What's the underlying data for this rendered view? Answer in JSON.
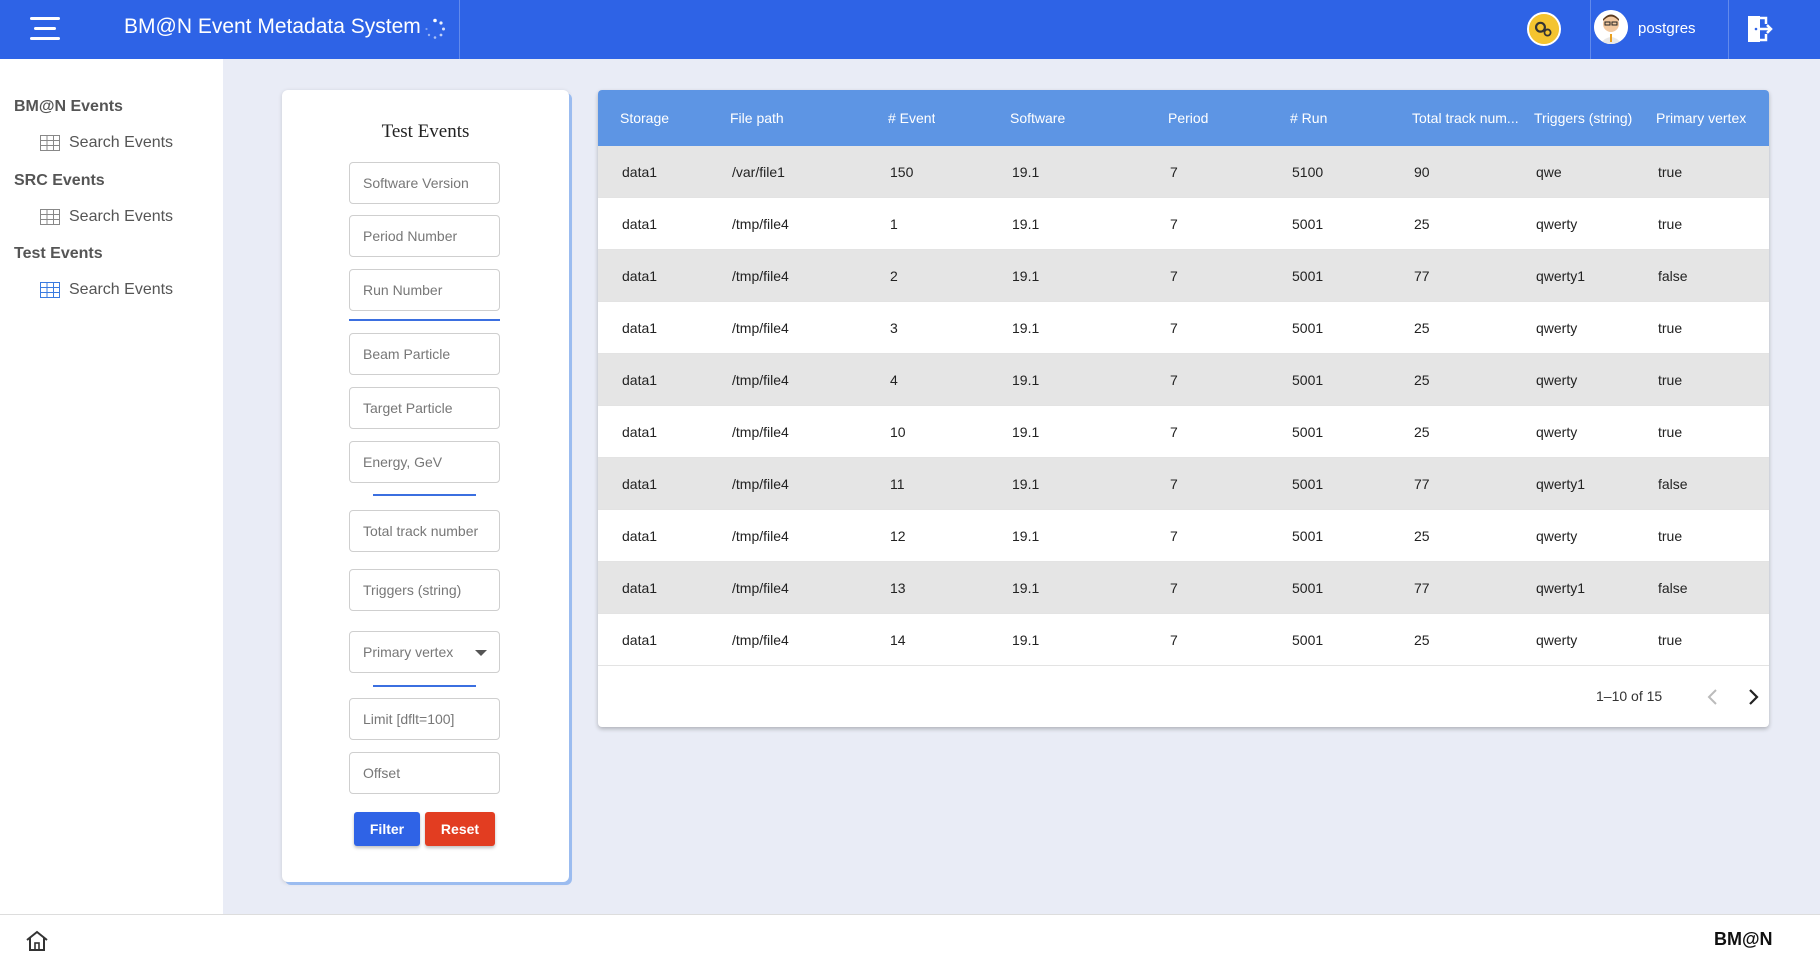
{
  "header": {
    "title": "BM@N Event Metadata System",
    "username": "postgres",
    "menu_icon": "menu-icon",
    "db_icon": "database-settings-icon",
    "logout_icon": "logout-icon"
  },
  "sidebar": {
    "groups": [
      {
        "label": "BM@N Events",
        "item": "Search Events"
      },
      {
        "label": "SRC Events",
        "item": "Search Events"
      },
      {
        "label": "Test Events",
        "item": "Search Events"
      }
    ]
  },
  "filter": {
    "title": "Test Events",
    "software_version": "Software Version",
    "period_number": "Period Number",
    "run_number": "Run Number",
    "beam_particle": "Beam Particle",
    "target_particle": "Target Particle",
    "energy": "Energy, GeV",
    "total_track_number": "Total track number",
    "triggers": "Triggers (string)",
    "primary_vertex": "Primary vertex",
    "limit": "Limit [dflt=100]",
    "offset": "Offset",
    "filter_label": "Filter",
    "reset_label": "Reset"
  },
  "table": {
    "columns": [
      "Storage",
      "File path",
      "# Event",
      "Software",
      "Period",
      "# Run",
      "Total track num...",
      "Triggers (string)",
      "Primary vertex"
    ],
    "rows": [
      [
        "data1",
        "/var/file1",
        "150",
        "19.1",
        "7",
        "5100",
        "90",
        "qwe",
        "true"
      ],
      [
        "data1",
        "/tmp/file4",
        "1",
        "19.1",
        "7",
        "5001",
        "25",
        "qwerty",
        "true"
      ],
      [
        "data1",
        "/tmp/file4",
        "2",
        "19.1",
        "7",
        "5001",
        "77",
        "qwerty1",
        "false"
      ],
      [
        "data1",
        "/tmp/file4",
        "3",
        "19.1",
        "7",
        "5001",
        "25",
        "qwerty",
        "true"
      ],
      [
        "data1",
        "/tmp/file4",
        "4",
        "19.1",
        "7",
        "5001",
        "25",
        "qwerty",
        "true"
      ],
      [
        "data1",
        "/tmp/file4",
        "10",
        "19.1",
        "7",
        "5001",
        "25",
        "qwerty",
        "true"
      ],
      [
        "data1",
        "/tmp/file4",
        "11",
        "19.1",
        "7",
        "5001",
        "77",
        "qwerty1",
        "false"
      ],
      [
        "data1",
        "/tmp/file4",
        "12",
        "19.1",
        "7",
        "5001",
        "25",
        "qwerty",
        "true"
      ],
      [
        "data1",
        "/tmp/file4",
        "13",
        "19.1",
        "7",
        "5001",
        "77",
        "qwerty1",
        "false"
      ],
      [
        "data1",
        "/tmp/file4",
        "14",
        "19.1",
        "7",
        "5001",
        "25",
        "qwerty",
        "true"
      ]
    ],
    "pagination": "1–10 of 15"
  },
  "footer": {
    "logo": "BM@N",
    "home_icon": "home-icon"
  },
  "colors": {
    "header": "#2e63e6",
    "table_header": "#5d95e4",
    "filter_button": "#2f63e6",
    "reset_button": "#e23d21"
  }
}
